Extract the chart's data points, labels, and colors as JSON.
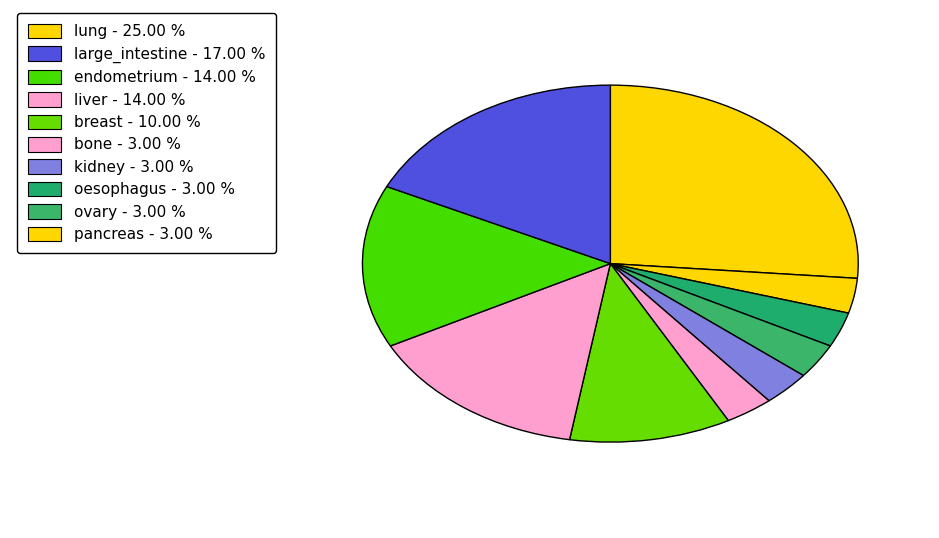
{
  "labels": [
    "lung",
    "pancreas",
    "oesophagus",
    "ovary",
    "kidney",
    "bone",
    "breast",
    "liver",
    "endometrium",
    "large_intestine"
  ],
  "values": [
    25,
    3,
    3,
    3,
    3,
    3,
    10,
    14,
    14,
    17
  ],
  "colors": [
    "#FFD700",
    "#FFD700",
    "#1FAD6E",
    "#3AB56A",
    "#8080E0",
    "#FF9FD0",
    "#66DD00",
    "#FF9FD0",
    "#44DD00",
    "#5050E0"
  ],
  "legend_labels": [
    "lung - 25.00 %",
    "large_intestine - 17.00 %",
    "endometrium - 14.00 %",
    "liver - 14.00 %",
    "breast - 10.00 %",
    "bone - 3.00 %",
    "kidney - 3.00 %",
    "oesophagus - 3.00 %",
    "ovary - 3.00 %",
    "pancreas - 3.00 %"
  ],
  "legend_colors": [
    "#FFD700",
    "#5050E0",
    "#44DD00",
    "#FF9FD0",
    "#66DD00",
    "#FF9FD0",
    "#8080E0",
    "#1FAD6E",
    "#3AB56A",
    "#FFD700"
  ],
  "background_color": "#FFFFFF",
  "figsize": [
    9.39,
    5.38
  ],
  "dpi": 100
}
